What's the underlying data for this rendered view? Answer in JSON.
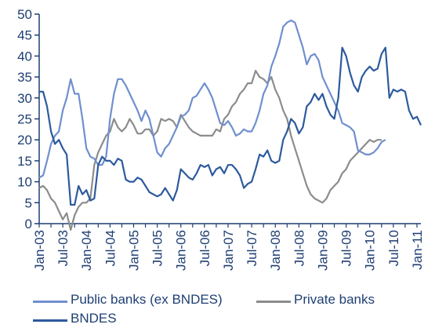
{
  "chart_data": {
    "type": "line",
    "title": "",
    "xlabel": "",
    "ylabel": "",
    "ylim": [
      0,
      50
    ],
    "yticks": [
      "0",
      "5",
      "10",
      "15",
      "20",
      "25",
      "30",
      "35",
      "40",
      "45",
      "50"
    ],
    "xticks": [
      "Jan-03",
      "Jul-03",
      "Jan-04",
      "Jul-04",
      "Jan-05",
      "Jul-05",
      "Jan-06",
      "Jul-06",
      "Jan-07",
      "Jul-07",
      "Jan-08",
      "Jul-08",
      "Jan-09",
      "Jul-09",
      "Jan-10",
      "Jul-10",
      "Jan-11"
    ],
    "x_start": "Jan-03",
    "x_end": "Apr-11",
    "x_frequency": "monthly",
    "grid": false,
    "legend_position": "bottom",
    "series": [
      {
        "name": "Public banks (ex BNDES)",
        "color": "#6f8fcf",
        "values": [
          11,
          11.5,
          15,
          19,
          21,
          22,
          27,
          30,
          34.5,
          31,
          31,
          25,
          18,
          16,
          15.5,
          14,
          14,
          16,
          25,
          31,
          34.5,
          34.5,
          33,
          31,
          29,
          27,
          24.5,
          27,
          25,
          21,
          17,
          16,
          18,
          19,
          21,
          23,
          25.5,
          26,
          27,
          30,
          30.5,
          32,
          33.5,
          32,
          30,
          27,
          24,
          23.5,
          24.5,
          23,
          21,
          21.5,
          22.5,
          22,
          22,
          24,
          27,
          31,
          33,
          37.5,
          40,
          43,
          47,
          48,
          48.5,
          48,
          45,
          42,
          38,
          40,
          40.5,
          39,
          35,
          33,
          31,
          29,
          27,
          24,
          23.5,
          23,
          22,
          17.5,
          17,
          16.5,
          16.5,
          17,
          18,
          19.5,
          20
        ]
      },
      {
        "name": "Private banks",
        "color": "#8c8c8c",
        "values": [
          8.5,
          9,
          8,
          6,
          5,
          3,
          1,
          2.5,
          -1.5,
          2,
          4,
          5,
          5,
          6,
          14,
          17,
          19,
          21,
          22,
          25,
          23,
          22,
          23,
          25,
          23.5,
          21.5,
          21.5,
          22.5,
          22.5,
          21,
          22,
          25,
          24.5,
          25,
          24.5,
          23,
          26,
          24.5,
          23,
          22,
          21.5,
          21,
          21,
          21,
          21,
          22.5,
          22,
          25,
          26,
          28,
          29,
          31,
          32,
          33.5,
          33.5,
          36.5,
          35,
          34.5,
          33.5,
          35,
          32,
          30,
          27,
          25,
          21,
          18,
          15,
          12,
          9,
          7,
          6,
          5.5,
          5,
          6,
          8,
          9,
          10,
          12,
          13,
          15,
          16,
          17,
          18,
          19,
          20,
          19.5,
          20,
          20
        ]
      },
      {
        "name": "BNDES",
        "color": "#2d5a9e",
        "values": [
          31.5,
          31.5,
          28,
          22,
          19,
          20,
          18,
          16.5,
          4.5,
          4.5,
          9,
          7,
          8,
          5.5,
          6,
          14,
          16,
          15,
          15,
          14,
          15.5,
          15,
          10.5,
          10,
          10,
          11,
          10.5,
          9,
          7.5,
          7,
          6.5,
          7,
          8.5,
          7,
          5.5,
          8,
          13,
          12,
          11,
          10.5,
          12,
          14,
          13.5,
          14,
          11.5,
          13,
          13.5,
          12,
          14,
          14,
          13,
          11.5,
          8.5,
          9.5,
          10,
          13,
          16.5,
          16,
          17.5,
          15,
          14.5,
          15,
          20,
          22,
          25,
          24,
          21.5,
          23,
          28,
          29,
          31,
          29.5,
          31,
          28,
          26,
          25,
          30,
          42,
          40,
          36,
          33,
          31.5,
          35,
          36.5,
          37.5,
          36.5,
          37,
          40.5,
          42,
          30,
          32,
          31.5,
          32,
          31.5,
          27,
          25,
          25.5,
          23.5
        ]
      }
    ]
  }
}
